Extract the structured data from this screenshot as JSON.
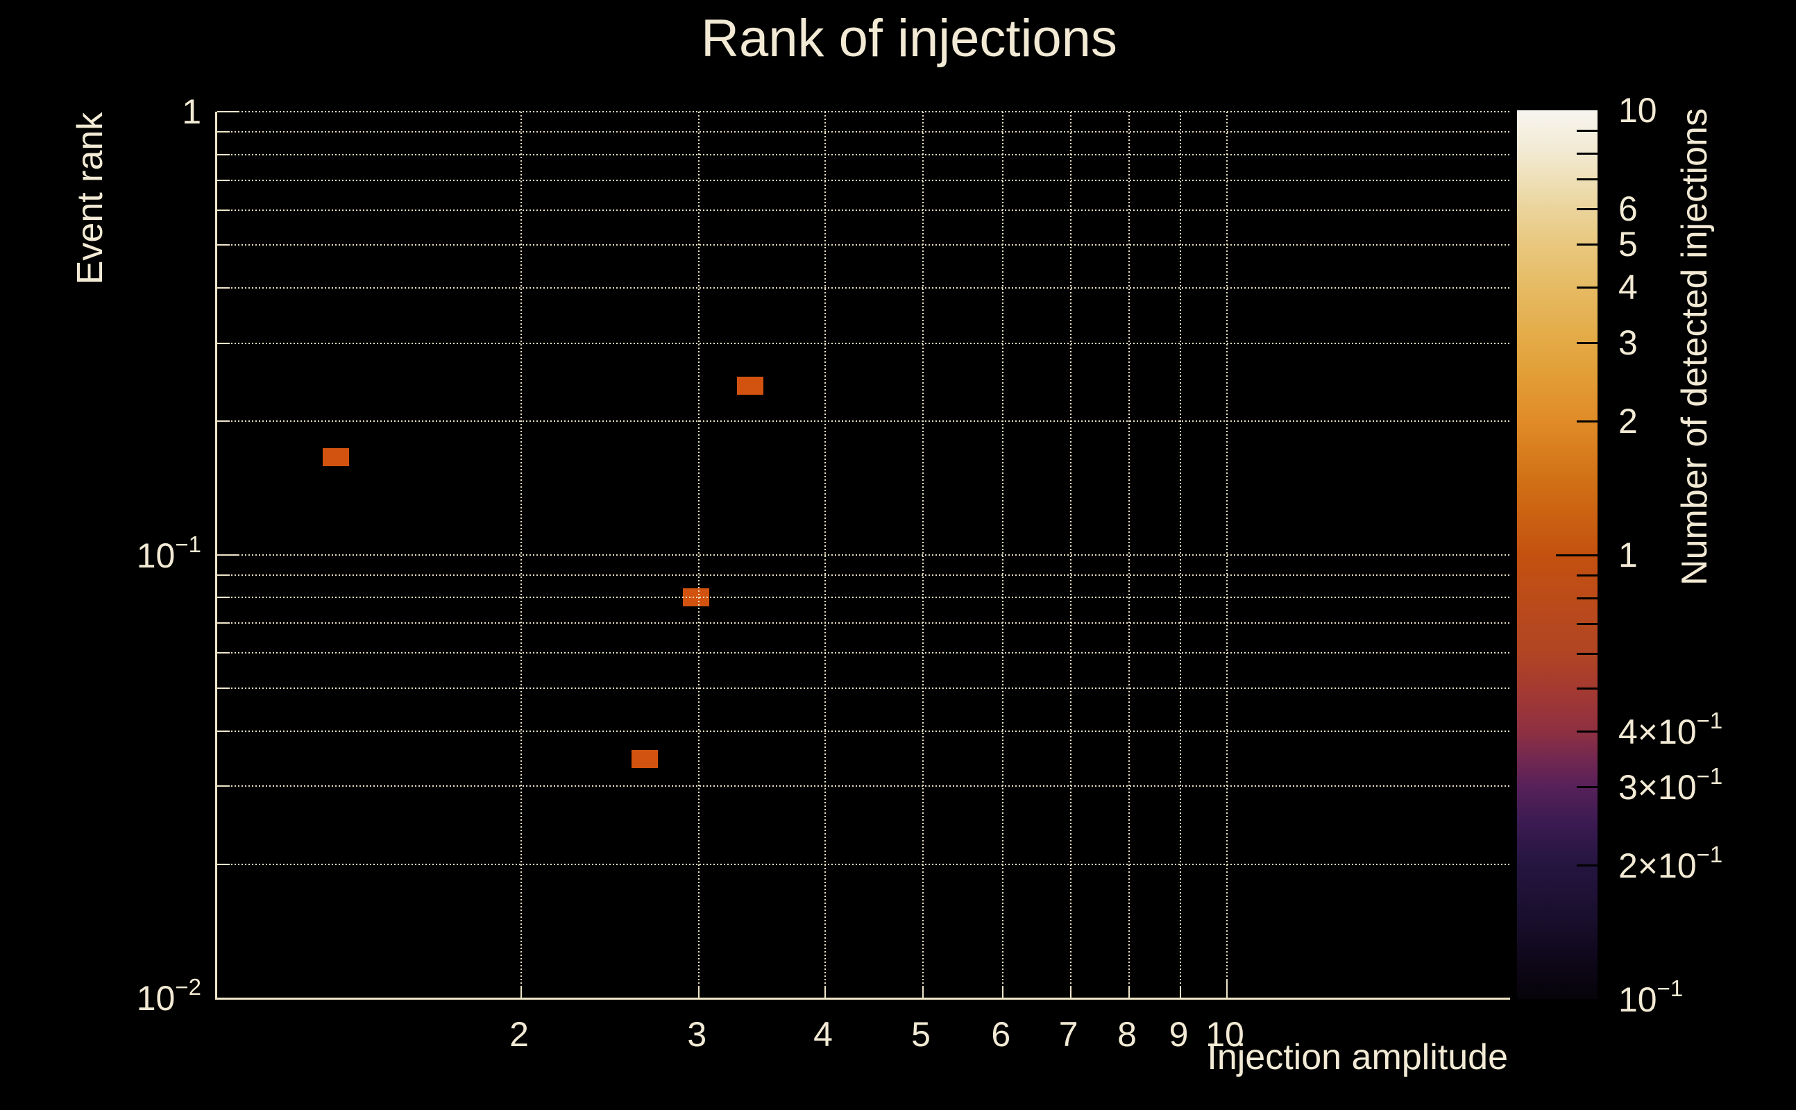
{
  "page": {
    "background": "#000000"
  },
  "title": {
    "text": "Rank of injections"
  },
  "colors": {
    "text": "#f2ead4",
    "grid": "#e9e0c2",
    "axis": "#efe6c8",
    "marker": "#d2530f",
    "background": "#000000"
  },
  "chart_data": {
    "type": "heatmap",
    "title": "Rank of injections",
    "xlabel": "Injection amplitude",
    "ylabel": "Event rank",
    "x_scale": "log",
    "y_scale": "log",
    "x_range": [
      1,
      19.07
    ],
    "y_range": [
      0.01,
      1
    ],
    "grid": "dotted, at every log subdivision",
    "x_ticks": [
      {
        "value": 2,
        "label": "2"
      },
      {
        "value": 3,
        "label": "3"
      },
      {
        "value": 4,
        "label": "4"
      },
      {
        "value": 5,
        "label": "5"
      },
      {
        "value": 6,
        "label": "6"
      },
      {
        "value": 7,
        "label": "7"
      },
      {
        "value": 8,
        "label": "8"
      },
      {
        "value": 9,
        "label": "9"
      },
      {
        "value": 10,
        "label": "10"
      }
    ],
    "y_ticks": [
      {
        "value": 1,
        "base": "1",
        "exp": ""
      },
      {
        "value": 0.1,
        "base": "10",
        "exp": "−1"
      },
      {
        "value": 0.01,
        "base": "10",
        "exp": "−2"
      }
    ],
    "points": [
      {
        "x": 1.31,
        "y": 0.166,
        "count": 1
      },
      {
        "x": 3.37,
        "y": 0.241,
        "count": 1
      },
      {
        "x": 2.98,
        "y": 0.08,
        "count": 1
      },
      {
        "x": 2.65,
        "y": 0.0346,
        "count": 1
      }
    ],
    "bin_color": "#d2530f",
    "bin_pixel_size": {
      "width": 38,
      "height": 26
    },
    "colorbar": {
      "label": "Number of detected injections",
      "scale": "log",
      "range": [
        0.1,
        10
      ],
      "position": "right",
      "labeled_ticks": [
        {
          "value": 10,
          "base": "10",
          "exp": ""
        },
        {
          "value": 6,
          "base": "6",
          "exp": ""
        },
        {
          "value": 5,
          "base": "5",
          "exp": ""
        },
        {
          "value": 4,
          "base": "4",
          "exp": ""
        },
        {
          "value": 3,
          "base": "3",
          "exp": ""
        },
        {
          "value": 2,
          "base": "2",
          "exp": ""
        },
        {
          "value": 1,
          "base": "1",
          "exp": ""
        },
        {
          "value": 0.4,
          "base": "4×10",
          "exp": "−1"
        },
        {
          "value": 0.3,
          "base": "3×10",
          "exp": "−1"
        },
        {
          "value": 0.2,
          "base": "2×10",
          "exp": "−1"
        },
        {
          "value": 0.1,
          "base": "10",
          "exp": "−1"
        }
      ],
      "minor_ticks": [
        9,
        8,
        7,
        0.9,
        0.8,
        0.7,
        0.6,
        0.5
      ],
      "gradient_bottom_to_top": [
        [
          "0%",
          "#060309"
        ],
        [
          "4%",
          "#0d0718"
        ],
        [
          "8%",
          "#170d29"
        ],
        [
          "15%",
          "#241540"
        ],
        [
          "20%",
          "#3c1b52"
        ],
        [
          "24%",
          "#58215a"
        ],
        [
          "27%",
          "#722850"
        ],
        [
          "30%",
          "#8e3042"
        ],
        [
          "35%",
          "#a53a31"
        ],
        [
          "39%",
          "#b14523"
        ],
        [
          "44%",
          "#ba4a1c"
        ],
        [
          "50%",
          "#c4510f"
        ],
        [
          "58%",
          "#d06f15"
        ],
        [
          "65%",
          "#e08b28"
        ],
        [
          "70%",
          "#e29d36"
        ],
        [
          "74%",
          "#e3aa45"
        ],
        [
          "80%",
          "#e6ba63"
        ],
        [
          "85%",
          "#e9c87f"
        ],
        [
          "89%",
          "#ebd49c"
        ],
        [
          "92%",
          "#eedfb5"
        ],
        [
          "95%",
          "#f2e9d0"
        ],
        [
          "98%",
          "#f5f0e3"
        ],
        [
          "100%",
          "#f7f5ef"
        ]
      ]
    }
  }
}
